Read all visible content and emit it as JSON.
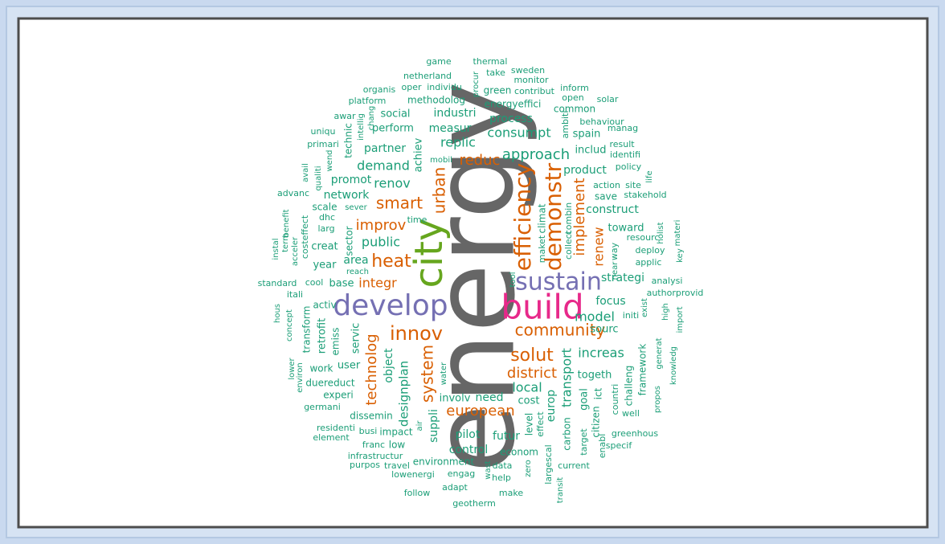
{
  "chart_data": {
    "type": "wordcloud",
    "words": [
      "energy",
      "build",
      "develop",
      "city",
      "sustain",
      "efficiency",
      "demonstr",
      "innov",
      "community",
      "solut",
      "district",
      "smart",
      "urban",
      "heat",
      "improv",
      "integr",
      "reduc",
      "european",
      "system",
      "implement",
      "renew",
      "technolog",
      "approach",
      "consumpt",
      "replic",
      "demand",
      "renov",
      "public",
      "area",
      "strategi",
      "focus",
      "model",
      "sourc",
      "increas",
      "togeth",
      "local",
      "transport",
      "goal",
      "cost",
      "europ",
      "pilot",
      "control",
      "futur",
      "need",
      "involv",
      "suppli",
      "designplan",
      "object",
      "user",
      "work",
      "servic",
      "emiss",
      "retrofit",
      "transform",
      "activ",
      "base",
      "cool",
      "year",
      "creat",
      "sector",
      "larg",
      "dhc",
      "scale",
      "network",
      "promot",
      "partner",
      "perform",
      "measur",
      "industri",
      "process",
      "social",
      "achiev",
      "mobil",
      "product",
      "construct",
      "toward",
      "resourc",
      "deploy",
      "applic",
      "save",
      "action",
      "site",
      "stakehold",
      "climat",
      "combin",
      "maket",
      "collect",
      "way",
      "near",
      "analysi",
      "authorprovid",
      "initi",
      "exist",
      "high",
      "import",
      "framework",
      "generat",
      "knowledg",
      "challeng",
      "countri",
      "well",
      "propos",
      "ict",
      "citizen",
      "enabl",
      "specif",
      "greenhous",
      "target",
      "carbon",
      "current",
      "transit",
      "largescal",
      "level",
      "effect",
      "econom",
      "zero",
      "data",
      "help",
      "wast",
      "make",
      "engag",
      "adapt",
      "geotherm",
      "follow",
      "lowenergi",
      "environment",
      "travel",
      "purpos",
      "infrastructur",
      "franc",
      "low",
      "impact",
      "busi",
      "residenti",
      "element",
      "air",
      "dissemin",
      "water",
      "experi",
      "germani",
      "duereduct",
      "environ",
      "lower",
      "concept",
      "hous",
      "itali",
      "standard",
      "reach",
      "instal",
      "term",
      "benefit",
      "costeffect",
      "acceler",
      "advanc",
      "avail",
      "qualiti",
      "wend",
      "primari",
      "uniqu",
      "technic",
      "intellig",
      "chang",
      "awar",
      "sever",
      "time",
      "platform",
      "organis",
      "oper",
      "individu",
      "netherland",
      "game",
      "methodolog",
      "thermal",
      "procur",
      "green",
      "take",
      "sweden",
      "monitor",
      "contribut",
      "energyeffici",
      "inform",
      "open",
      "common",
      "solar",
      "ambiti",
      "behaviour",
      "spain",
      "manag",
      "includ",
      "result",
      "identifi",
      "policy",
      "life",
      "holist",
      "materi",
      "key",
      "tool"
    ]
  }
}
